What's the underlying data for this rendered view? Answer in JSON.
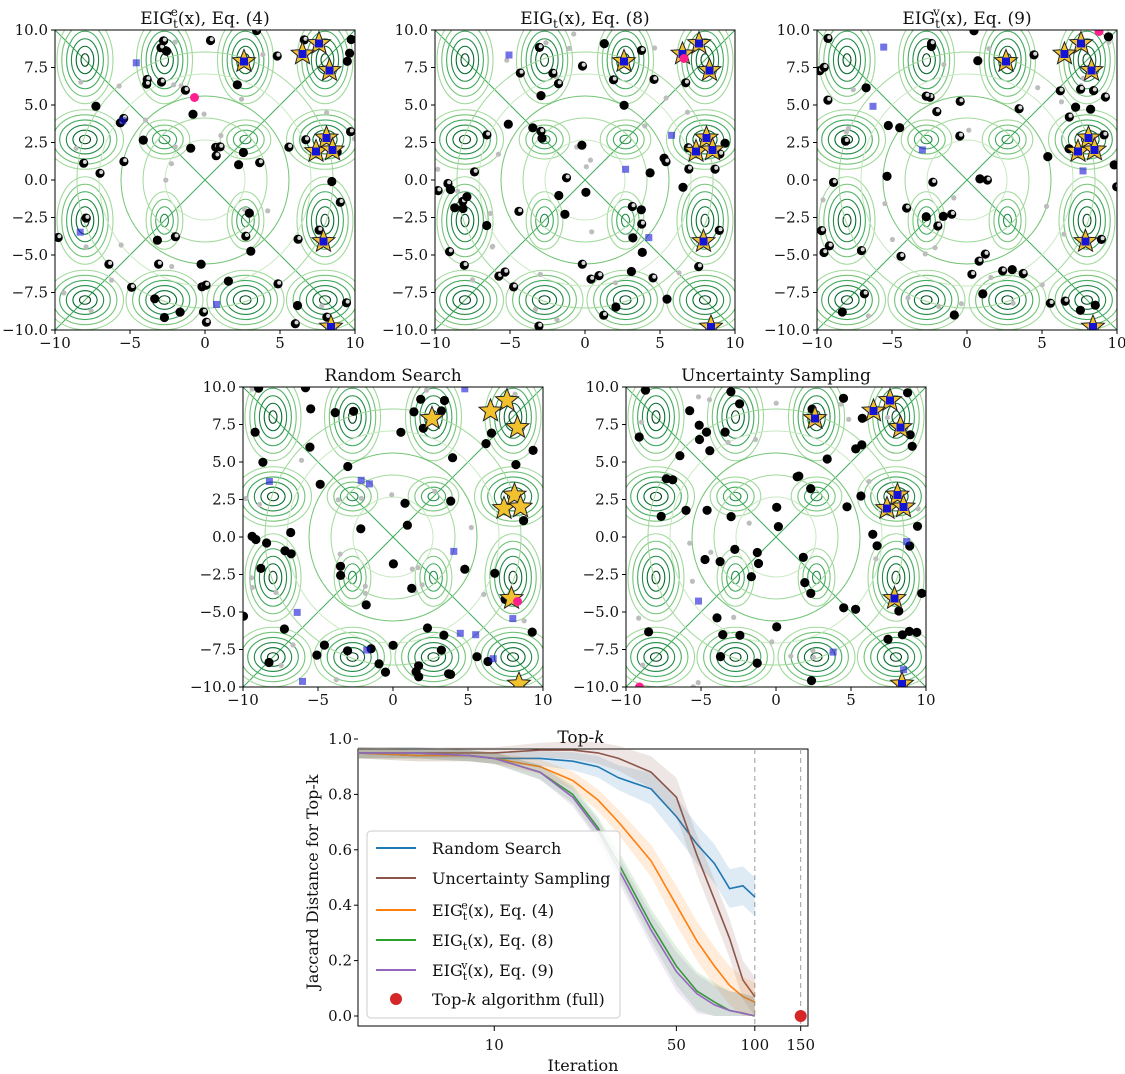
{
  "colors": {
    "contour": [
      "#e3f3de",
      "#c7e9c0",
      "#a1d99b",
      "#74c476",
      "#41ab5d",
      "#238b45",
      "#006d2c",
      "#00441b"
    ],
    "star": "#f2c12e",
    "query_point": "#000000",
    "selected_marker": "#1414d6",
    "current_query": "#ff1f8e",
    "posterior_sample": "#bdbdbd",
    "series": {
      "random": "#1f77b4",
      "uncertainty": "#8c564b",
      "eig_e": "#ff7f0e",
      "eig_t": "#2ca02c",
      "eig_v": "#9467bd",
      "full": "#d62728"
    }
  },
  "panels": [
    {
      "id": "eig_e",
      "title": "EIG",
      "sub": "t",
      "sup": "e",
      "tail": "(x), Eq. (4)",
      "xticks": [
        "−10",
        "−5",
        "0",
        "5",
        "10"
      ],
      "yticks": [
        "10.0",
        "7.5",
        "5.0",
        "2.5",
        "0.0",
        "−2.5",
        "−5.0",
        "−7.5",
        "−10.0"
      ]
    },
    {
      "id": "eig_t",
      "title": "EIG",
      "sub": "t",
      "sup": "",
      "tail": "(x), Eq. (8)",
      "xticks": [
        "−10",
        "−5",
        "0",
        "5",
        "10"
      ],
      "yticks": [
        "10.0",
        "7.5",
        "5.0",
        "2.5",
        "0.0",
        "−2.5",
        "−5.0",
        "−7.5",
        "−10.0"
      ]
    },
    {
      "id": "eig_v",
      "title": "EIG",
      "sub": "t",
      "sup": "v",
      "tail": "(x), Eq. (9)",
      "xticks": [
        "−10",
        "−5",
        "0",
        "5",
        "10"
      ],
      "yticks": [
        "10.0",
        "7.5",
        "5.0",
        "2.5",
        "0.0",
        "−2.5",
        "−5.0",
        "−7.5",
        "−10.0"
      ]
    },
    {
      "id": "random",
      "title": "Random Search",
      "sub": "",
      "sup": "",
      "tail": "",
      "xticks": [
        "−10",
        "−5",
        "0",
        "5",
        "10"
      ],
      "yticks": [
        "10.0",
        "7.5",
        "5.0",
        "2.5",
        "0.0",
        "−2.5",
        "−5.0",
        "−7.5",
        "−10.0"
      ]
    },
    {
      "id": "uncertainty",
      "title": "Uncertainty Sampling",
      "sub": "",
      "sup": "",
      "tail": "",
      "xticks": [
        "−10",
        "−5",
        "0",
        "5",
        "10"
      ],
      "yticks": [
        "10.0",
        "7.5",
        "5.0",
        "2.5",
        "0.0",
        "−2.5",
        "−5.0",
        "−7.5",
        "−10.0"
      ]
    }
  ],
  "chart_data": {
    "type": "line",
    "title": "Top-k",
    "title_main": "Top-",
    "title_k": "k",
    "xlabel": "Iteration",
    "ylabel": "Jaccard Distance for Top-k",
    "xscale": "log",
    "xlim": [
      3,
      160
    ],
    "ylim": [
      0.0,
      1.0
    ],
    "xticks": [
      10,
      50,
      100,
      150
    ],
    "yticks": [
      "0.0",
      "0.2",
      "0.4",
      "0.6",
      "0.8",
      "1.0"
    ],
    "vlines": [
      100,
      150
    ],
    "legend_position": "lower-left",
    "series": [
      {
        "key": "random",
        "name": "Random Search",
        "x": [
          3,
          5,
          8,
          10,
          15,
          20,
          25,
          30,
          40,
          50,
          60,
          70,
          80,
          90,
          100
        ],
        "y": [
          0.95,
          0.94,
          0.94,
          0.93,
          0.93,
          0.92,
          0.9,
          0.86,
          0.82,
          0.72,
          0.62,
          0.55,
          0.46,
          0.47,
          0.43
        ]
      },
      {
        "key": "uncertainty",
        "name": "Uncertainty Sampling",
        "x": [
          3,
          5,
          8,
          10,
          15,
          20,
          25,
          30,
          40,
          50,
          60,
          70,
          80,
          90,
          100
        ],
        "y": [
          0.95,
          0.95,
          0.95,
          0.95,
          0.96,
          0.96,
          0.95,
          0.93,
          0.88,
          0.79,
          0.58,
          0.42,
          0.28,
          0.13,
          0.07
        ]
      },
      {
        "key": "eig_e",
        "name": "EIG",
        "sub": "t",
        "sup": "e",
        "tail": "(x), Eq. (4)",
        "x": [
          3,
          5,
          8,
          10,
          15,
          20,
          25,
          30,
          40,
          50,
          60,
          70,
          80,
          90,
          100
        ],
        "y": [
          0.95,
          0.94,
          0.94,
          0.93,
          0.9,
          0.85,
          0.78,
          0.7,
          0.56,
          0.4,
          0.27,
          0.18,
          0.11,
          0.07,
          0.05
        ]
      },
      {
        "key": "eig_t",
        "name": "EIG",
        "sub": "t",
        "sup": "",
        "tail": "(x), Eq. (8)",
        "x": [
          3,
          5,
          8,
          10,
          15,
          20,
          25,
          30,
          40,
          50,
          60,
          70,
          80,
          90,
          100
        ],
        "y": [
          0.95,
          0.95,
          0.94,
          0.93,
          0.88,
          0.8,
          0.68,
          0.55,
          0.33,
          0.18,
          0.09,
          0.05,
          0.02,
          0.01,
          0.0
        ]
      },
      {
        "key": "eig_v",
        "name": "EIG",
        "sub": "t",
        "sup": "v",
        "tail": "(x), Eq. (9)",
        "x": [
          3,
          5,
          8,
          10,
          15,
          20,
          25,
          30,
          40,
          50,
          60,
          70,
          80,
          90,
          100
        ],
        "y": [
          0.95,
          0.95,
          0.94,
          0.93,
          0.88,
          0.79,
          0.67,
          0.53,
          0.31,
          0.16,
          0.08,
          0.04,
          0.02,
          0.01,
          0.0
        ]
      }
    ],
    "points": [
      {
        "key": "full",
        "name": "Top-k algorithm (full)",
        "name_main": "Top-",
        "name_k": "k",
        "name_tail": " algorithm (full)",
        "x": 150,
        "y": 0.0
      }
    ]
  }
}
